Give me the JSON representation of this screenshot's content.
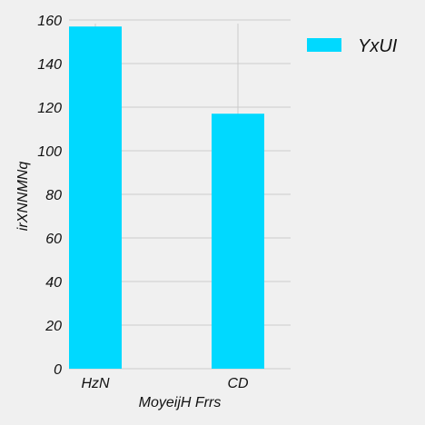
{
  "chart_data": {
    "type": "bar",
    "categories": [
      "HzN",
      "CD"
    ],
    "series": [
      {
        "name": "YxUI",
        "values": [
          157,
          117
        ]
      }
    ],
    "xlabel": "MoyeijH Frrs",
    "ylabel": "irXNNMNq",
    "ylim": [
      0,
      160
    ],
    "yticks": [
      0,
      20,
      40,
      60,
      80,
      100,
      120,
      140,
      160
    ],
    "grid": true,
    "legend_position": "top-right",
    "colors": {
      "bar": "#00d9ff",
      "grid": "#cbcbcb",
      "background": "#f0f0f0"
    }
  }
}
